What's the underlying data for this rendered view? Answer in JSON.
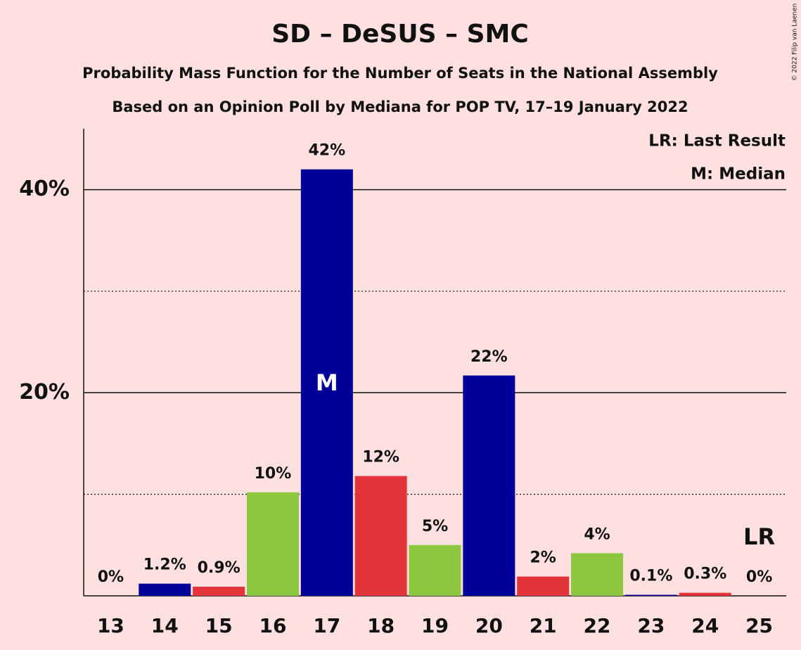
{
  "chart_data": {
    "type": "bar",
    "title": "SD – DeSUS – SMC",
    "subtitle": "Probability Mass Function for the Number of Seats in the National Assembly",
    "subtitle2": "Based on an Opinion Poll by Mediana for POP TV, 17–19 January 2022",
    "copyright": "© 2022 Filip van Laenen",
    "legend": [
      "LR: Last Result",
      "M: Median"
    ],
    "categories": [
      "13",
      "14",
      "15",
      "16",
      "17",
      "18",
      "19",
      "20",
      "21",
      "22",
      "23",
      "24",
      "25"
    ],
    "values": [
      0,
      1.2,
      0.9,
      10.2,
      42.0,
      11.8,
      5.0,
      21.7,
      1.9,
      4.2,
      0.1,
      0.3,
      0
    ],
    "value_labels": [
      "0%",
      "1.2%",
      "0.9%",
      "10%",
      "42%",
      "12%",
      "5%",
      "22%",
      "2%",
      "4%",
      "0.1%",
      "0.3%",
      "0%"
    ],
    "colors": [
      "#8dc63f",
      "#000099",
      "#e3343a",
      "#8dc63f",
      "#000099",
      "#e3343a",
      "#8dc63f",
      "#000099",
      "#e3343a",
      "#8dc63f",
      "#000099",
      "#e3343a",
      "#8dc63f"
    ],
    "median": {
      "label": "M",
      "category": "17"
    },
    "last_result": {
      "label": "LR",
      "category": "25"
    },
    "ylim": [
      0,
      46
    ],
    "yticks": [
      {
        "value": 20,
        "label": "20%"
      },
      {
        "value": 40,
        "label": "40%"
      }
    ],
    "minor_yticks": [
      10,
      30
    ],
    "grid": true
  }
}
